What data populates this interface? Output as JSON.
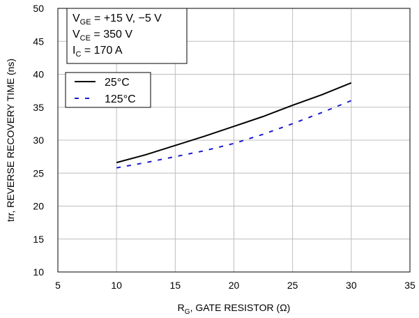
{
  "chart_data": {
    "type": "line",
    "xlabel": {
      "main": "R",
      "sub": "G",
      "rest": ", GATE RESISTOR (Ω)"
    },
    "ylabel": "trr, REVERSE RECOVERY TIME (ns)",
    "xlim": [
      5,
      35
    ],
    "ylim": [
      10,
      50
    ],
    "xticks": [
      5,
      10,
      15,
      20,
      25,
      30,
      35
    ],
    "yticks": [
      10,
      15,
      20,
      25,
      30,
      35,
      40,
      45,
      50
    ],
    "grid": true,
    "conditions": [
      {
        "main": "V",
        "sub": "GE",
        "rest": " = +15 V, −5 V"
      },
      {
        "main": "V",
        "sub": "CE",
        "rest": " = 350 V"
      },
      {
        "main": "I",
        "sub": "C",
        "rest": " = 170 A"
      }
    ],
    "legend_position": "upper-left",
    "series": [
      {
        "name": "25°C",
        "color": "#000000",
        "style": "solid",
        "x": [
          10,
          12.5,
          15,
          17.5,
          20,
          22.5,
          25,
          27.5,
          30
        ],
        "y": [
          26.6,
          27.8,
          29.2,
          30.6,
          32.1,
          33.6,
          35.3,
          36.9,
          38.7
        ]
      },
      {
        "name": "125°C",
        "color": "#1a1ad0",
        "style": "dashed",
        "x": [
          10,
          12.5,
          15,
          17.5,
          20,
          22.5,
          25,
          27.5,
          30
        ],
        "y": [
          25.8,
          26.6,
          27.5,
          28.4,
          29.5,
          30.9,
          32.5,
          34.2,
          36.0
        ]
      }
    ]
  }
}
